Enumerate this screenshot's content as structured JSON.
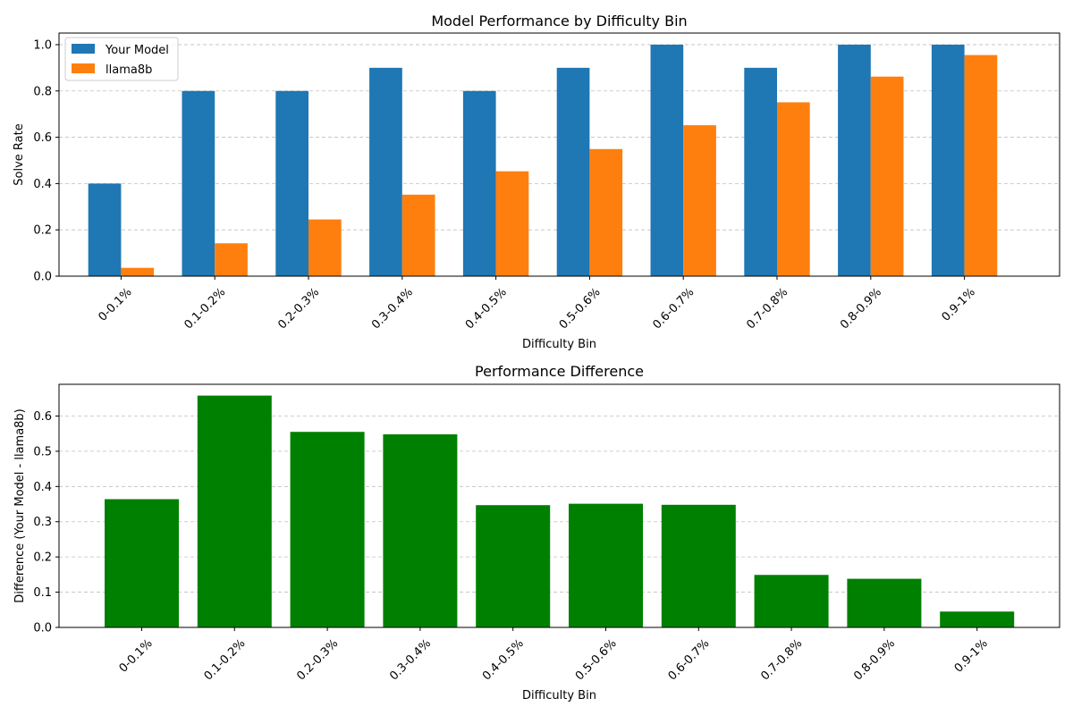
{
  "chart_data": [
    {
      "type": "bar",
      "title": "Model Performance by Difficulty Bin",
      "xlabel": "Difficulty Bin",
      "ylabel": "Solve Rate",
      "categories": [
        "0-0.1%",
        "0.1-0.2%",
        "0.2-0.3%",
        "0.3-0.4%",
        "0.4-0.5%",
        "0.5-0.6%",
        "0.6-0.7%",
        "0.7-0.8%",
        "0.8-0.9%",
        "0.9-1%"
      ],
      "series": [
        {
          "name": "Your Model",
          "color": "#1f77b4",
          "values": [
            0.4,
            0.8,
            0.8,
            0.9,
            0.8,
            0.9,
            1.0,
            0.9,
            1.0,
            1.0
          ]
        },
        {
          "name": "llama8b",
          "color": "#ff7f0e",
          "values": [
            0.036,
            0.142,
            0.245,
            0.352,
            0.453,
            0.549,
            0.652,
            0.751,
            0.862,
            0.955
          ]
        }
      ],
      "ylim": [
        0,
        1.05
      ],
      "yticks": [
        0.0,
        0.2,
        0.4,
        0.6,
        0.8,
        1.0
      ],
      "ytick_labels": [
        "0.0",
        "0.2",
        "0.4",
        "0.6",
        "0.8",
        "1.0"
      ],
      "grid": "y",
      "legend": "top-left"
    },
    {
      "type": "bar",
      "title": "Performance Difference",
      "xlabel": "Difficulty Bin",
      "ylabel": "Difference (Your Model - llama8b)",
      "categories": [
        "0-0.1%",
        "0.1-0.2%",
        "0.2-0.3%",
        "0.3-0.4%",
        "0.4-0.5%",
        "0.5-0.6%",
        "0.6-0.7%",
        "0.7-0.8%",
        "0.8-0.9%",
        "0.9-1%"
      ],
      "series": [
        {
          "color": "#008000",
          "values": [
            0.364,
            0.658,
            0.555,
            0.548,
            0.347,
            0.351,
            0.348,
            0.149,
            0.138,
            0.045
          ]
        }
      ],
      "ylim": [
        0,
        0.69
      ],
      "yticks": [
        0.0,
        0.1,
        0.2,
        0.3,
        0.4,
        0.5,
        0.6
      ],
      "ytick_labels": [
        "0.0",
        "0.1",
        "0.2",
        "0.3",
        "0.4",
        "0.5",
        "0.6"
      ],
      "grid": "y"
    }
  ]
}
